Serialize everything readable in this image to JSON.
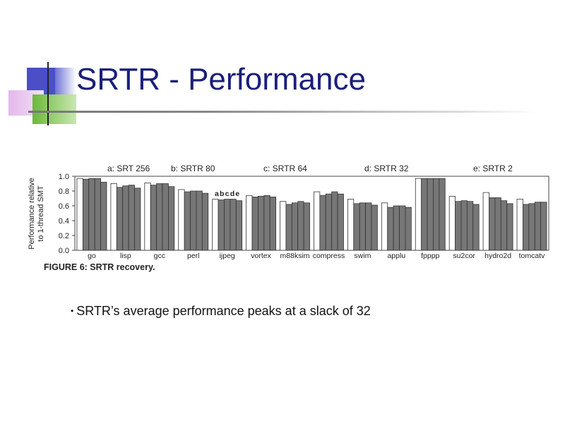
{
  "slide": {
    "title": "SRTR - Performance",
    "bullet": "SRTR’s average performance peaks at a slack of 32",
    "bullet_marker": "•"
  },
  "colors": {
    "title": "#1a1f7a",
    "deco_blue": "#4a4fc7",
    "deco_pink": "#e8c2ee",
    "deco_green": "#7dc24a",
    "bar_white": "#ffffff",
    "bar_gray": "#777777"
  },
  "chart_data": {
    "type": "bar",
    "caption": "FIGURE 6: SRTR recovery.",
    "ylabel": [
      "Performance relative",
      "to 1-thread SMT"
    ],
    "ylim": [
      0,
      1.0
    ],
    "yticks": [
      "0.0",
      "0.2",
      "0.4",
      "0.6",
      "0.8",
      "1.0"
    ],
    "group_labels": [
      "a: SRT 256",
      "b: SRTR 80",
      "c: SRTR 64",
      "d: SRTR 32",
      "e: SRTR 2"
    ],
    "bar_letters": "abcde",
    "categories": [
      "go",
      "lisp",
      "gcc",
      "perl",
      "ijpeg",
      "vortex",
      "m88ksim",
      "compress",
      "swim",
      "applu",
      "fpppp",
      "su2cor",
      "hydro2d",
      "tomcatv"
    ],
    "series": [
      {
        "name": "a",
        "values": [
          0.97,
          0.9,
          0.91,
          0.82,
          0.69,
          0.74,
          0.66,
          0.79,
          0.69,
          0.64,
          0.97,
          0.73,
          0.78,
          0.69
        ]
      },
      {
        "name": "b",
        "values": [
          0.96,
          0.85,
          0.88,
          0.79,
          0.68,
          0.72,
          0.62,
          0.74,
          0.63,
          0.58,
          0.97,
          0.66,
          0.71,
          0.62
        ]
      },
      {
        "name": "c",
        "values": [
          0.97,
          0.87,
          0.9,
          0.8,
          0.69,
          0.73,
          0.64,
          0.76,
          0.64,
          0.6,
          0.97,
          0.67,
          0.71,
          0.63
        ]
      },
      {
        "name": "d",
        "values": [
          0.97,
          0.88,
          0.9,
          0.8,
          0.69,
          0.74,
          0.66,
          0.79,
          0.64,
          0.6,
          0.97,
          0.66,
          0.67,
          0.65
        ]
      },
      {
        "name": "e",
        "values": [
          0.92,
          0.84,
          0.86,
          0.77,
          0.67,
          0.72,
          0.64,
          0.76,
          0.61,
          0.58,
          0.97,
          0.62,
          0.63,
          0.65
        ]
      }
    ],
    "grid": false
  }
}
